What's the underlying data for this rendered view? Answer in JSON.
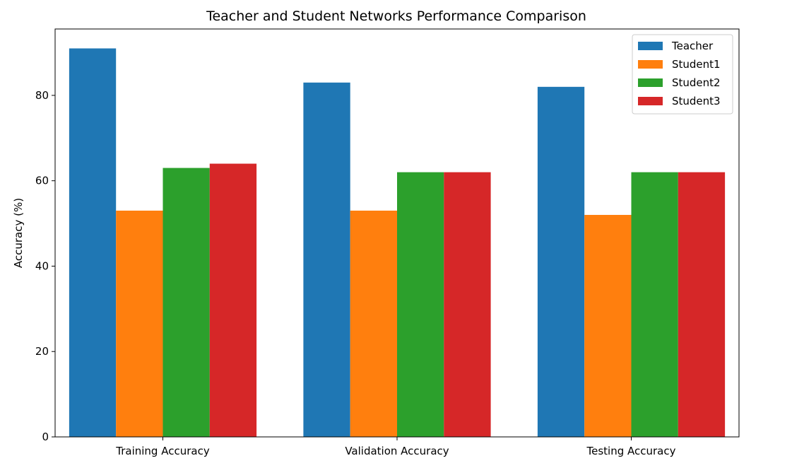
{
  "chart_data": {
    "type": "bar",
    "title": "Teacher and Student Networks Performance Comparison",
    "xlabel": "",
    "ylabel": "Accuracy (%)",
    "categories": [
      "Training Accuracy",
      "Validation Accuracy",
      "Testing Accuracy"
    ],
    "series": [
      {
        "name": "Teacher",
        "color": "#1f77b4",
        "values": [
          91,
          83,
          82
        ]
      },
      {
        "name": "Student1",
        "color": "#ff7f0e",
        "values": [
          53,
          53,
          52
        ]
      },
      {
        "name": "Student2",
        "color": "#2ca02c",
        "values": [
          63,
          62,
          62
        ]
      },
      {
        "name": "Student3",
        "color": "#d62728",
        "values": [
          64,
          62,
          62
        ]
      }
    ],
    "ylim": [
      0,
      95.55
    ],
    "yticks": [
      0,
      20,
      40,
      60,
      80
    ],
    "grid": false,
    "legend_position": "top-right"
  }
}
